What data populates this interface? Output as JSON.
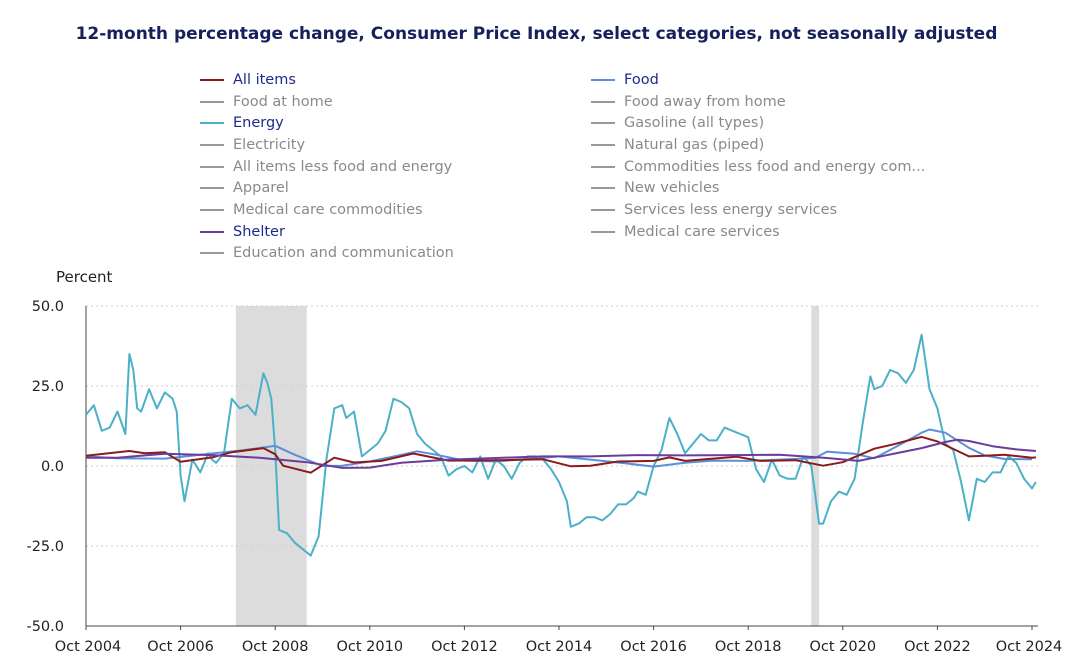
{
  "chart_data": {
    "type": "line",
    "title": "12-month percentage change, Consumer Price Index, select categories, not seasonally adjusted",
    "ylabel": "Percent",
    "xlabel": "",
    "ylim": [
      -50,
      50
    ],
    "yticks": [
      "50.0",
      "25.0",
      "0.0",
      "-25.0",
      "-50.0"
    ],
    "ytick_values": [
      50,
      25,
      0,
      -25,
      -50
    ],
    "xticks": [
      "Oct 2004",
      "Oct 2006",
      "Oct 2008",
      "Oct 2010",
      "Oct 2012",
      "Oct 2014",
      "Oct 2016",
      "Oct 2018",
      "Oct 2020",
      "Oct 2022",
      "Oct 2024"
    ],
    "xrange": [
      "2004-10",
      "2024-10"
    ],
    "grid": "horizontal dotted",
    "legend_position": "top",
    "recessions": [
      {
        "start": "2007-12",
        "end": "2009-06"
      },
      {
        "start": "2020-02",
        "end": "2020-04"
      }
    ],
    "legend": [
      {
        "label": "All items",
        "color": "#8b1a1a",
        "active": true
      },
      {
        "label": "Food",
        "color": "#5b8fd6",
        "active": true
      },
      {
        "label": "Food at home",
        "color": "#999999",
        "active": false
      },
      {
        "label": "Food away from home",
        "color": "#999999",
        "active": false
      },
      {
        "label": "Energy",
        "color": "#4bb0c8",
        "active": true
      },
      {
        "label": "Gasoline (all types)",
        "color": "#999999",
        "active": false
      },
      {
        "label": "Electricity",
        "color": "#999999",
        "active": false
      },
      {
        "label": "Natural gas (piped)",
        "color": "#999999",
        "active": false
      },
      {
        "label": "All items less food and energy",
        "color": "#999999",
        "active": false
      },
      {
        "label": "Commodities less food and energy com...",
        "color": "#999999",
        "active": false
      },
      {
        "label": "Apparel",
        "color": "#999999",
        "active": false
      },
      {
        "label": "New vehicles",
        "color": "#999999",
        "active": false
      },
      {
        "label": "Medical care commodities",
        "color": "#999999",
        "active": false
      },
      {
        "label": "Services less energy services",
        "color": "#999999",
        "active": false
      },
      {
        "label": "Shelter",
        "color": "#6a3d9a",
        "active": true
      },
      {
        "label": "Medical care services",
        "color": "#999999",
        "active": false
      },
      {
        "label": "Education and communication",
        "color": "#999999",
        "active": false
      }
    ],
    "series": [
      {
        "name": "Energy",
        "color": "#4bb0c8",
        "points": [
          [
            "2004-10",
            16
          ],
          [
            "2004-12",
            19
          ],
          [
            "2005-02",
            11
          ],
          [
            "2005-04",
            12
          ],
          [
            "2005-06",
            17
          ],
          [
            "2005-08",
            10
          ],
          [
            "2005-09",
            35
          ],
          [
            "2005-10",
            30
          ],
          [
            "2005-11",
            18
          ],
          [
            "2005-12",
            17
          ],
          [
            "2006-02",
            24
          ],
          [
            "2006-04",
            18
          ],
          [
            "2006-06",
            23
          ],
          [
            "2006-08",
            21
          ],
          [
            "2006-09",
            17
          ],
          [
            "2006-10",
            -3
          ],
          [
            "2006-11",
            -11
          ],
          [
            "2007-01",
            2
          ],
          [
            "2007-03",
            -2
          ],
          [
            "2007-05",
            4
          ],
          [
            "2007-06",
            2
          ],
          [
            "2007-07",
            1
          ],
          [
            "2007-09",
            4
          ],
          [
            "2007-11",
            21
          ],
          [
            "2008-01",
            18
          ],
          [
            "2008-03",
            19
          ],
          [
            "2008-05",
            16
          ],
          [
            "2008-07",
            29
          ],
          [
            "2008-08",
            26
          ],
          [
            "2008-09",
            21
          ],
          [
            "2008-10",
            5
          ],
          [
            "2008-11",
            -20
          ],
          [
            "2009-01",
            -21
          ],
          [
            "2009-03",
            -24
          ],
          [
            "2009-05",
            -26
          ],
          [
            "2009-07",
            -28
          ],
          [
            "2009-09",
            -22
          ],
          [
            "2009-11",
            2
          ],
          [
            "2010-01",
            18
          ],
          [
            "2010-03",
            19
          ],
          [
            "2010-04",
            15
          ],
          [
            "2010-06",
            17
          ],
          [
            "2010-08",
            3
          ],
          [
            "2010-10",
            5
          ],
          [
            "2010-12",
            7
          ],
          [
            "2011-02",
            11
          ],
          [
            "2011-04",
            21
          ],
          [
            "2011-06",
            20
          ],
          [
            "2011-08",
            18
          ],
          [
            "2011-10",
            10
          ],
          [
            "2011-12",
            7
          ],
          [
            "2012-02",
            5
          ],
          [
            "2012-04",
            3
          ],
          [
            "2012-06",
            -3
          ],
          [
            "2012-08",
            -1
          ],
          [
            "2012-10",
            0
          ],
          [
            "2012-12",
            -2
          ],
          [
            "2013-02",
            3
          ],
          [
            "2013-04",
            -4
          ],
          [
            "2013-06",
            2
          ],
          [
            "2013-08",
            0
          ],
          [
            "2013-10",
            -4
          ],
          [
            "2013-12",
            1
          ],
          [
            "2014-02",
            3
          ],
          [
            "2014-04",
            3
          ],
          [
            "2014-06",
            2
          ],
          [
            "2014-08",
            -1
          ],
          [
            "2014-10",
            -5
          ],
          [
            "2014-12",
            -11
          ],
          [
            "2015-01",
            -19
          ],
          [
            "2015-03",
            -18
          ],
          [
            "2015-05",
            -16
          ],
          [
            "2015-07",
            -16
          ],
          [
            "2015-09",
            -17
          ],
          [
            "2015-11",
            -15
          ],
          [
            "2016-01",
            -12
          ],
          [
            "2016-03",
            -12
          ],
          [
            "2016-05",
            -10
          ],
          [
            "2016-06",
            -8
          ],
          [
            "2016-08",
            -9
          ],
          [
            "2016-10",
            0
          ],
          [
            "2016-12",
            5
          ],
          [
            "2017-02",
            15
          ],
          [
            "2017-04",
            10
          ],
          [
            "2017-06",
            4
          ],
          [
            "2017-08",
            7
          ],
          [
            "2017-10",
            10
          ],
          [
            "2017-12",
            8
          ],
          [
            "2018-02",
            8
          ],
          [
            "2018-04",
            12
          ],
          [
            "2018-06",
            11
          ],
          [
            "2018-08",
            10
          ],
          [
            "2018-10",
            9
          ],
          [
            "2018-12",
            -1
          ],
          [
            "2019-02",
            -5
          ],
          [
            "2019-04",
            2
          ],
          [
            "2019-06",
            -3
          ],
          [
            "2019-08",
            -4
          ],
          [
            "2019-10",
            -4
          ],
          [
            "2019-12",
            3
          ],
          [
            "2020-02",
            0
          ],
          [
            "2020-04",
            -18
          ],
          [
            "2020-05",
            -18
          ],
          [
            "2020-07",
            -11
          ],
          [
            "2020-09",
            -8
          ],
          [
            "2020-11",
            -9
          ],
          [
            "2021-01",
            -4
          ],
          [
            "2021-03",
            13
          ],
          [
            "2021-05",
            28
          ],
          [
            "2021-06",
            24
          ],
          [
            "2021-08",
            25
          ],
          [
            "2021-10",
            30
          ],
          [
            "2021-12",
            29
          ],
          [
            "2022-02",
            26
          ],
          [
            "2022-04",
            30
          ],
          [
            "2022-06",
            41
          ],
          [
            "2022-08",
            24
          ],
          [
            "2022-10",
            18
          ],
          [
            "2022-12",
            7
          ],
          [
            "2023-02",
            5
          ],
          [
            "2023-04",
            -5
          ],
          [
            "2023-06",
            -17
          ],
          [
            "2023-08",
            -4
          ],
          [
            "2023-10",
            -5
          ],
          [
            "2023-12",
            -2
          ],
          [
            "2024-02",
            -2
          ],
          [
            "2024-04",
            3
          ],
          [
            "2024-06",
            1
          ],
          [
            "2024-08",
            -4
          ],
          [
            "2024-10",
            -7
          ],
          [
            "2024-11",
            -5
          ]
        ]
      },
      {
        "name": "Food",
        "color": "#5b8fd6",
        "points": [
          [
            "2004-10",
            3
          ],
          [
            "2005-06",
            2.4
          ],
          [
            "2006-06",
            2.3
          ],
          [
            "2007-06",
            3.9
          ],
          [
            "2008-01",
            4.8
          ],
          [
            "2008-06",
            5.6
          ],
          [
            "2008-10",
            6.3
          ],
          [
            "2009-03",
            3.5
          ],
          [
            "2009-10",
            0
          ],
          [
            "2010-03",
            0.1
          ],
          [
            "2010-10",
            1.4
          ],
          [
            "2011-06",
            3.5
          ],
          [
            "2011-10",
            4.6
          ],
          [
            "2012-03",
            3.5
          ],
          [
            "2012-10",
            1.7
          ],
          [
            "2013-06",
            1.4
          ],
          [
            "2014-06",
            2.6
          ],
          [
            "2014-10",
            3.0
          ],
          [
            "2015-06",
            2.0
          ],
          [
            "2016-03",
            0.8
          ],
          [
            "2016-10",
            -0.2
          ],
          [
            "2017-06",
            1.0
          ],
          [
            "2018-01",
            1.7
          ],
          [
            "2018-10",
            1.6
          ],
          [
            "2019-06",
            2.0
          ],
          [
            "2020-03",
            2.5
          ],
          [
            "2020-06",
            4.5
          ],
          [
            "2021-01",
            3.8
          ],
          [
            "2021-06",
            2.4
          ],
          [
            "2021-12",
            6.3
          ],
          [
            "2022-06",
            10.4
          ],
          [
            "2022-08",
            11.4
          ],
          [
            "2022-12",
            10.4
          ],
          [
            "2023-06",
            5.7
          ],
          [
            "2023-10",
            3.3
          ],
          [
            "2024-03",
            2.2
          ],
          [
            "2024-10",
            2.1
          ]
        ]
      },
      {
        "name": "All items",
        "color": "#8b1a1a",
        "points": [
          [
            "2004-10",
            3.2
          ],
          [
            "2005-09",
            4.7
          ],
          [
            "2006-01",
            4.0
          ],
          [
            "2006-06",
            4.3
          ],
          [
            "2006-10",
            1.3
          ],
          [
            "2007-06",
            2.7
          ],
          [
            "2007-11",
            4.3
          ],
          [
            "2008-07",
            5.6
          ],
          [
            "2008-10",
            3.7
          ],
          [
            "2008-12",
            0.1
          ],
          [
            "2009-07",
            -2.1
          ],
          [
            "2010-01",
            2.6
          ],
          [
            "2010-06",
            1.1
          ],
          [
            "2011-01",
            1.6
          ],
          [
            "2011-09",
            3.9
          ],
          [
            "2012-06",
            1.7
          ],
          [
            "2013-06",
            1.8
          ],
          [
            "2014-06",
            2.1
          ],
          [
            "2015-01",
            -0.1
          ],
          [
            "2015-06",
            0.1
          ],
          [
            "2016-01",
            1.4
          ],
          [
            "2016-10",
            1.6
          ],
          [
            "2017-02",
            2.7
          ],
          [
            "2017-06",
            1.6
          ],
          [
            "2018-07",
            2.9
          ],
          [
            "2019-01",
            1.6
          ],
          [
            "2019-10",
            1.8
          ],
          [
            "2020-05",
            0.1
          ],
          [
            "2020-10",
            1.2
          ],
          [
            "2021-06",
            5.4
          ],
          [
            "2021-11",
            6.8
          ],
          [
            "2022-06",
            9.1
          ],
          [
            "2022-10",
            7.7
          ],
          [
            "2023-06",
            3.0
          ],
          [
            "2023-10",
            3.2
          ],
          [
            "2024-03",
            3.5
          ],
          [
            "2024-10",
            2.6
          ],
          [
            "2024-11",
            2.7
          ]
        ]
      },
      {
        "name": "Shelter",
        "color": "#6a3d9a",
        "points": [
          [
            "2004-10",
            2.6
          ],
          [
            "2005-06",
            2.6
          ],
          [
            "2006-06",
            3.8
          ],
          [
            "2007-06",
            3.4
          ],
          [
            "2008-06",
            2.6
          ],
          [
            "2009-06",
            1.2
          ],
          [
            "2010-03",
            -0.6
          ],
          [
            "2010-10",
            -0.5
          ],
          [
            "2011-06",
            1.0
          ],
          [
            "2012-06",
            2.0
          ],
          [
            "2013-06",
            2.5
          ],
          [
            "2014-06",
            3.0
          ],
          [
            "2015-06",
            3.0
          ],
          [
            "2016-06",
            3.4
          ],
          [
            "2017-06",
            3.3
          ],
          [
            "2018-06",
            3.4
          ],
          [
            "2019-06",
            3.5
          ],
          [
            "2020-06",
            2.5
          ],
          [
            "2021-02",
            1.6
          ],
          [
            "2021-06",
            2.6
          ],
          [
            "2021-12",
            4.1
          ],
          [
            "2022-06",
            5.6
          ],
          [
            "2022-12",
            7.5
          ],
          [
            "2023-03",
            8.2
          ],
          [
            "2023-06",
            7.8
          ],
          [
            "2023-12",
            6.2
          ],
          [
            "2024-06",
            5.2
          ],
          [
            "2024-11",
            4.7
          ]
        ]
      }
    ]
  }
}
